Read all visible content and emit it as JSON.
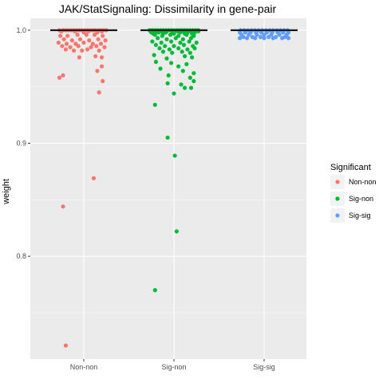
{
  "chart_data": {
    "type": "scatter",
    "title": "JAK/StatSignaling: Dissimilarity in gene-pair",
    "xlabel": "",
    "ylabel": "weight",
    "categories": [
      "Non-non",
      "Sig-non",
      "Sig-sig"
    ],
    "y_ticks": [
      "0.8",
      "0.9",
      "1.0"
    ],
    "ylim": [
      0.709,
      1.0105
    ],
    "grid": true,
    "legend": {
      "title": "Significant",
      "position": "right",
      "entries": [
        "Non-non",
        "Sig-non",
        "Sig-sig"
      ]
    },
    "colors": {
      "Non-non": "#F8766D",
      "Sig-non": "#00BA38",
      "Sig-sig": "#619CFF"
    },
    "median": [
      1.0,
      1.0,
      1.0
    ],
    "series": [
      {
        "name": "Non-non",
        "points": [
          [
            -0.27,
            1.0
          ],
          [
            -0.23,
            1.0
          ],
          [
            -0.2,
            1.0
          ],
          [
            -0.17,
            1.0
          ],
          [
            -0.14,
            1.0
          ],
          [
            -0.11,
            1.0
          ],
          [
            -0.08,
            1.0
          ],
          [
            -0.05,
            1.0
          ],
          [
            -0.02,
            1.0
          ],
          [
            0.01,
            1.0
          ],
          [
            0.04,
            1.0
          ],
          [
            0.07,
            1.0
          ],
          [
            0.1,
            1.0
          ],
          [
            0.13,
            1.0
          ],
          [
            0.16,
            1.0
          ],
          [
            0.19,
            1.0
          ],
          [
            0.22,
            1.0
          ],
          [
            0.25,
            1.0
          ],
          [
            -0.25,
            0.999
          ],
          [
            -0.1,
            0.999
          ],
          [
            0.05,
            0.999
          ],
          [
            0.2,
            0.999
          ],
          [
            0.0,
            0.998
          ],
          [
            0.15,
            0.998
          ],
          [
            -0.26,
            0.995
          ],
          [
            -0.18,
            0.995
          ],
          [
            -0.07,
            0.996
          ],
          [
            0.03,
            0.996
          ],
          [
            0.12,
            0.996
          ],
          [
            0.21,
            0.995
          ],
          [
            -0.22,
            0.992
          ],
          [
            -0.13,
            0.991
          ],
          [
            -0.04,
            0.992
          ],
          [
            0.06,
            0.991
          ],
          [
            0.16,
            0.992
          ],
          [
            0.24,
            0.991
          ],
          [
            -0.28,
            0.989
          ],
          [
            -0.19,
            0.988
          ],
          [
            -0.09,
            0.988
          ],
          [
            0.0,
            0.989
          ],
          [
            0.1,
            0.988
          ],
          [
            0.19,
            0.988
          ],
          [
            -0.24,
            0.986
          ],
          [
            -0.15,
            0.985
          ],
          [
            -0.06,
            0.986
          ],
          [
            0.08,
            0.985
          ],
          [
            0.14,
            0.986
          ],
          [
            0.23,
            0.985
          ],
          [
            -0.2,
            0.983
          ],
          [
            -0.11,
            0.982
          ],
          [
            -0.02,
            0.982
          ],
          [
            0.04,
            0.983
          ],
          [
            0.17,
            0.982
          ],
          [
            0.13,
            0.977
          ],
          [
            0.2,
            0.976
          ],
          [
            -0.05,
            0.976
          ],
          [
            0.2,
            0.968
          ],
          [
            0.15,
            0.964
          ],
          [
            -0.23,
            0.96
          ],
          [
            -0.27,
            0.958
          ],
          [
            0.21,
            0.955
          ],
          [
            0.17,
            0.945
          ],
          [
            0.11,
            0.869
          ],
          [
            -0.23,
            0.844
          ],
          [
            -0.2,
            0.721
          ]
        ]
      },
      {
        "name": "Sig-non",
        "points": [
          [
            -0.27,
            1.0
          ],
          [
            -0.24,
            1.0
          ],
          [
            -0.21,
            1.0
          ],
          [
            -0.18,
            1.0
          ],
          [
            -0.15,
            1.0
          ],
          [
            -0.12,
            1.0
          ],
          [
            -0.09,
            1.0
          ],
          [
            -0.06,
            1.0
          ],
          [
            -0.03,
            1.0
          ],
          [
            0.0,
            1.0
          ],
          [
            0.03,
            1.0
          ],
          [
            0.06,
            1.0
          ],
          [
            0.09,
            1.0
          ],
          [
            0.12,
            1.0
          ],
          [
            0.15,
            1.0
          ],
          [
            0.18,
            1.0
          ],
          [
            0.21,
            1.0
          ],
          [
            0.24,
            1.0
          ],
          [
            0.27,
            1.0
          ],
          [
            -0.26,
            0.999
          ],
          [
            -0.2,
            0.999
          ],
          [
            -0.14,
            0.999
          ],
          [
            -0.08,
            0.999
          ],
          [
            -0.02,
            0.999
          ],
          [
            0.04,
            0.999
          ],
          [
            0.1,
            0.999
          ],
          [
            0.16,
            0.999
          ],
          [
            0.22,
            0.999
          ],
          [
            0.27,
            0.999
          ],
          [
            -0.25,
            0.998
          ],
          [
            -0.17,
            0.998
          ],
          [
            -0.09,
            0.998
          ],
          [
            -0.01,
            0.998
          ],
          [
            0.07,
            0.998
          ],
          [
            0.15,
            0.998
          ],
          [
            0.23,
            0.998
          ],
          [
            -0.23,
            0.997
          ],
          [
            -0.12,
            0.997
          ],
          [
            0.0,
            0.997
          ],
          [
            0.12,
            0.997
          ],
          [
            0.2,
            0.997
          ],
          [
            -0.21,
            0.996
          ],
          [
            -0.13,
            0.995
          ],
          [
            -0.04,
            0.996
          ],
          [
            0.05,
            0.995
          ],
          [
            0.14,
            0.996
          ],
          [
            0.22,
            0.995
          ],
          [
            -0.18,
            0.993
          ],
          [
            -0.08,
            0.992
          ],
          [
            0.02,
            0.993
          ],
          [
            0.1,
            0.992
          ],
          [
            0.19,
            0.993
          ],
          [
            -0.24,
            0.99
          ],
          [
            -0.14,
            0.989
          ],
          [
            -0.03,
            0.99
          ],
          [
            0.07,
            0.989
          ],
          [
            0.17,
            0.99
          ],
          [
            0.25,
            0.989
          ],
          [
            -0.2,
            0.987
          ],
          [
            -0.1,
            0.986
          ],
          [
            0.0,
            0.986
          ],
          [
            0.11,
            0.987
          ],
          [
            0.21,
            0.986
          ],
          [
            -0.16,
            0.984
          ],
          [
            -0.05,
            0.983
          ],
          [
            0.05,
            0.984
          ],
          [
            0.15,
            0.983
          ],
          [
            0.23,
            0.984
          ],
          [
            -0.12,
            0.981
          ],
          [
            -0.02,
            0.98
          ],
          [
            0.09,
            0.981
          ],
          [
            0.18,
            0.98
          ],
          [
            -0.22,
            0.978
          ],
          [
            0.12,
            0.977
          ],
          [
            0.2,
            0.976
          ],
          [
            -0.08,
            0.975
          ],
          [
            -0.2,
            0.972
          ],
          [
            -0.03,
            0.971
          ],
          [
            0.14,
            0.97
          ],
          [
            0.05,
            0.968
          ],
          [
            -0.15,
            0.966
          ],
          [
            0.1,
            0.964
          ],
          [
            0.22,
            0.962
          ],
          [
            -0.06,
            0.96
          ],
          [
            0.18,
            0.958
          ],
          [
            0.22,
            0.955
          ],
          [
            -0.07,
            0.953
          ],
          [
            0.08,
            0.952
          ],
          [
            0.12,
            0.949
          ],
          [
            0.19,
            0.949
          ],
          [
            0.0,
            0.944
          ],
          [
            -0.21,
            0.934
          ],
          [
            -0.07,
            0.905
          ],
          [
            0.01,
            0.889
          ],
          [
            0.03,
            0.822
          ],
          [
            -0.21,
            0.77
          ]
        ]
      },
      {
        "name": "Sig-sig",
        "points": [
          [
            -0.26,
            1.0
          ],
          [
            -0.22,
            1.0
          ],
          [
            -0.18,
            1.0
          ],
          [
            -0.14,
            1.0
          ],
          [
            -0.1,
            1.0
          ],
          [
            -0.06,
            1.0
          ],
          [
            -0.02,
            1.0
          ],
          [
            0.02,
            1.0
          ],
          [
            0.06,
            1.0
          ],
          [
            0.1,
            1.0
          ],
          [
            0.14,
            1.0
          ],
          [
            0.18,
            1.0
          ],
          [
            0.22,
            1.0
          ],
          [
            0.26,
            1.0
          ],
          [
            -0.27,
            0.998
          ],
          [
            -0.21,
            0.998
          ],
          [
            -0.15,
            0.998
          ],
          [
            -0.09,
            0.998
          ],
          [
            -0.03,
            0.998
          ],
          [
            0.03,
            0.998
          ],
          [
            0.09,
            0.998
          ],
          [
            0.15,
            0.998
          ],
          [
            0.21,
            0.998
          ],
          [
            0.27,
            0.998
          ],
          [
            -0.25,
            0.996
          ],
          [
            -0.17,
            0.996
          ],
          [
            -0.08,
            0.996
          ],
          [
            0.0,
            0.996
          ],
          [
            0.08,
            0.996
          ],
          [
            0.17,
            0.996
          ],
          [
            0.25,
            0.996
          ],
          [
            -0.23,
            0.994
          ],
          [
            -0.13,
            0.994
          ],
          [
            -0.04,
            0.994
          ],
          [
            0.05,
            0.994
          ],
          [
            0.13,
            0.994
          ],
          [
            0.23,
            0.994
          ],
          [
            -0.27,
            0.993
          ],
          [
            -0.19,
            0.993
          ],
          [
            -0.1,
            0.993
          ],
          [
            0.0,
            0.993
          ],
          [
            0.1,
            0.993
          ],
          [
            0.2,
            0.993
          ],
          [
            0.27,
            0.993
          ]
        ]
      }
    ]
  }
}
